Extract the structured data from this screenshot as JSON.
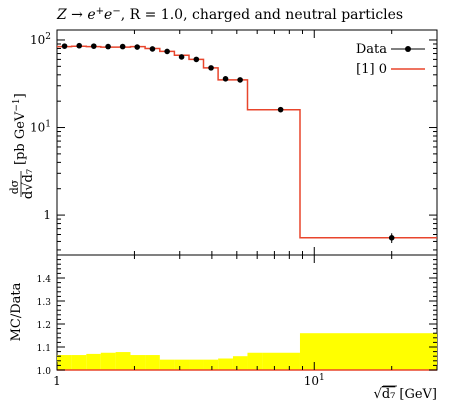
{
  "chart_data": {
    "type": "line",
    "title": "Z → e⁺e⁻, R = 1.0, charged and neutral particles",
    "title_parts": {
      "pre": "Z → e",
      "sup1": "+",
      "mid": "e",
      "sup2": "−",
      "post": ", R = 1.0, charged and neutral particles"
    },
    "ylabel": "dσ/d√d₇ [pb GeV⁻¹]",
    "ylabel_parts": {
      "num": "dσ",
      "den_pre": "d",
      "den_rad": "d₇",
      "unit": "[pb GeV",
      "unit_sup": "−1",
      "unit_close": "]"
    },
    "xlabel": "√d₇ [GeV]",
    "xlabel_parts": {
      "rad": "d₇",
      "unit": "[GeV]"
    },
    "ratio_ylabel": "MC/Data",
    "x_scale": "log",
    "y_scale": "log",
    "xlim": [
      1,
      30
    ],
    "ylim": [
      0.35,
      130
    ],
    "ratio_ylim": [
      1.0,
      1.5
    ],
    "x_ticks": [
      {
        "v": 1,
        "base": "1",
        "exp": ""
      },
      {
        "v": 10,
        "base": "10",
        "exp": "1"
      }
    ],
    "y_ticks": [
      {
        "v": 1,
        "base": "1",
        "exp": ""
      },
      {
        "v": 10,
        "base": "10",
        "exp": "1"
      },
      {
        "v": 100,
        "base": "10",
        "exp": "2"
      }
    ],
    "ratio_ticks": [
      "1.0",
      "1.1",
      "1.2",
      "1.3",
      "1.4"
    ],
    "legend": {
      "position": "top-right",
      "data_label": "Data",
      "mc_label": "[1] 0"
    },
    "colors": {
      "data": "#000000",
      "mc": "#e8452c",
      "band": "#ffff00"
    },
    "bin_edges": [
      1.0,
      1.14,
      1.3,
      1.48,
      1.69,
      1.93,
      2.2,
      2.51,
      2.86,
      3.26,
      3.71,
      4.23,
      4.83,
      5.5,
      6.27,
      8.8,
      30.0
    ],
    "mc_values": [
      84,
      85,
      84,
      83,
      83,
      84,
      80,
      74,
      67,
      60,
      48,
      35,
      35,
      16,
      16,
      0.55
    ],
    "series": [
      {
        "name": "Data",
        "x": [
          1.07,
          1.22,
          1.39,
          1.58,
          1.8,
          2.05,
          2.35,
          2.68,
          3.05,
          3.48,
          3.97,
          4.52,
          5.15,
          7.4,
          20.0
        ],
        "y": [
          85,
          86,
          85,
          84,
          84,
          83,
          79,
          74,
          64,
          60,
          48,
          36,
          35,
          16,
          0.55
        ],
        "yerr": [
          2,
          2,
          2,
          2,
          2,
          2,
          2,
          2,
          2,
          2,
          2,
          1,
          1,
          1,
          0.07
        ]
      }
    ],
    "ratio_band": [
      1.065,
      1.065,
      1.07,
      1.075,
      1.078,
      1.065,
      1.065,
      1.045,
      1.045,
      1.045,
      1.045,
      1.05,
      1.06,
      1.075,
      1.075,
      1.16
    ]
  }
}
